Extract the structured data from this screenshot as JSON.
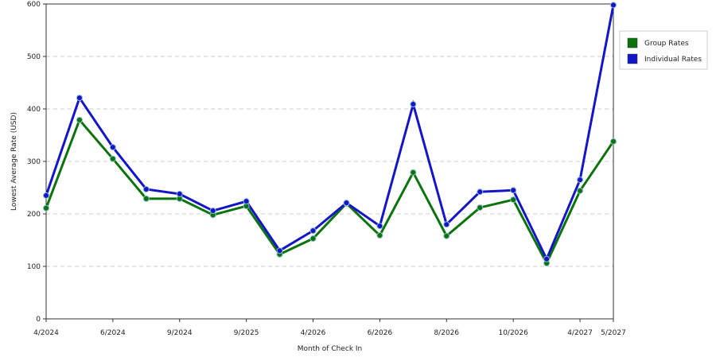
{
  "chart_data": {
    "type": "line",
    "x_label": "Month of Check In",
    "y_label": "Lowest Average Rate (USD)",
    "categories": [
      "4/2024",
      null,
      "6/2024",
      null,
      "9/2024",
      null,
      "9/2025",
      null,
      "4/2026",
      null,
      "6/2026",
      null,
      "8/2026",
      null,
      "10/2026",
      null,
      "4/2027",
      "5/2027"
    ],
    "series": [
      {
        "name": "Group Rates",
        "color": "#0b730b",
        "values": [
          211,
          379,
          305,
          229,
          229,
          198,
          215,
          123,
          153,
          220,
          159,
          279,
          158,
          212,
          227,
          106,
          244,
          338
        ]
      },
      {
        "name": "Individual Rates",
        "color": "#1515c8",
        "values": [
          235,
          421,
          327,
          247,
          238,
          206,
          224,
          130,
          168,
          221,
          177,
          409,
          180,
          242,
          245,
          114,
          265,
          598
        ]
      }
    ],
    "ylim": [
      0,
      600
    ],
    "yticks": [
      0,
      100,
      200,
      300,
      400,
      500,
      600
    ],
    "grid": true,
    "legend": "right"
  }
}
